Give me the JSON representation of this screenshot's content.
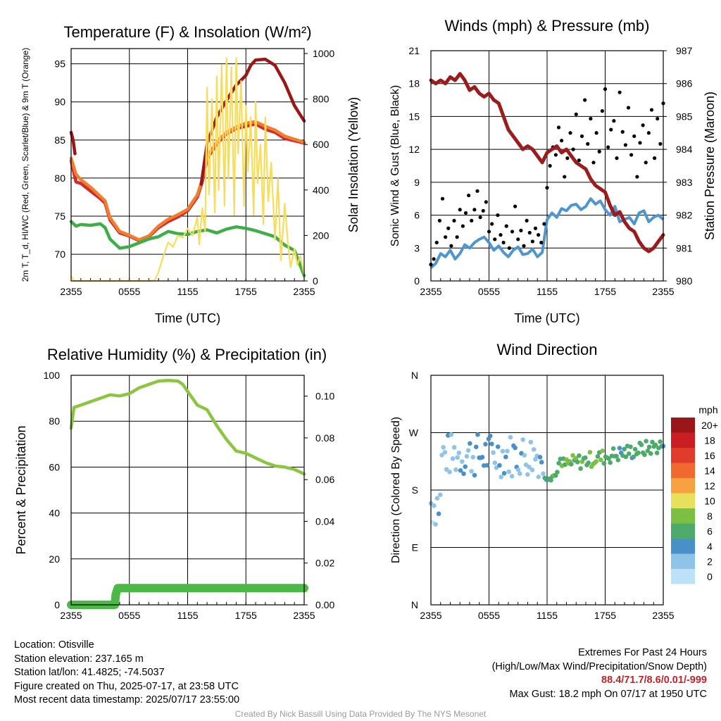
{
  "chart_data": [
    {
      "type": "line",
      "title": "Temperature (F) & Insolation (W/m²)",
      "xlabel": "Time (UTC)",
      "ylabel": "2m T, T_d, HI/WC (Red, Green, Scarlet/Blue) & 9m T (Orange)",
      "y2label": "Solar Insolation (Yellow)",
      "x_ticks": [
        "2355",
        "0555",
        "1155",
        "1755",
        "2355"
      ],
      "x_range_hours": [
        0,
        24
      ],
      "ylim": [
        66.5,
        97
      ],
      "y_ticks": [
        70,
        75,
        80,
        85,
        90,
        95
      ],
      "y2lim": [
        0,
        1000
      ],
      "y2_ticks": [
        0,
        200,
        400,
        600,
        800,
        1000
      ],
      "colors": {
        "temp": "#d32a2a",
        "dew": "#3fae49",
        "heat": "#9b1717",
        "t9": "#f07e30",
        "solar": "#f7dd5a"
      },
      "series": [
        {
          "key": "temp",
          "x": [
            0,
            0.5,
            1,
            2,
            3,
            3.5,
            4,
            5,
            6,
            7,
            8,
            9,
            10,
            11,
            12,
            13,
            13.5,
            14,
            14.5,
            15,
            16,
            17,
            18,
            19,
            20,
            21,
            22,
            23,
            24
          ],
          "y": [
            82.3,
            79.5,
            79.3,
            78.3,
            77.3,
            76.7,
            74.5,
            72.8,
            72.4,
            71.8,
            72.3,
            73.5,
            74.3,
            74.9,
            75.7,
            77.5,
            79.5,
            82.5,
            83.5,
            84.5,
            85.8,
            86.5,
            86.8,
            87.1,
            86.4,
            86,
            85.2,
            84.9,
            84.6
          ]
        },
        {
          "key": "t9",
          "x": [
            0,
            0.5,
            1,
            2,
            3,
            3.5,
            4,
            5,
            6,
            7,
            8,
            9,
            10,
            11,
            12,
            13,
            13.5,
            14,
            14.5,
            15,
            16,
            17,
            18,
            19,
            20,
            21,
            22,
            23,
            24
          ],
          "y": [
            82.6,
            80.5,
            79.8,
            78.8,
            77.6,
            77,
            74.8,
            73,
            72.5,
            71.9,
            72.4,
            73.7,
            74.6,
            75.2,
            75.9,
            77.8,
            79.8,
            82.8,
            83.8,
            84.8,
            86,
            86.7,
            87.2,
            87.4,
            86.8,
            86.3,
            85.5,
            85.1,
            84.7
          ]
        },
        {
          "key": "dew",
          "x": [
            0,
            0.5,
            1,
            2,
            3,
            3.5,
            4,
            5,
            6,
            7,
            8,
            9,
            10,
            11,
            12,
            13,
            14,
            15,
            16,
            17,
            18,
            19,
            20,
            21,
            22,
            23,
            24
          ],
          "y": [
            74.3,
            73.7,
            73.9,
            73.8,
            74,
            73.5,
            72,
            70.8,
            71,
            71.5,
            72,
            72.3,
            73,
            72.7,
            72.6,
            73,
            73.2,
            72.8,
            73.3,
            73.6,
            73.4,
            73.1,
            72.7,
            72.3,
            71.2,
            70.5,
            67.2
          ]
        },
        {
          "key": "heat",
          "x": [
            0,
            0.2,
            0.4
          ],
          "y": [
            86,
            85,
            83.2
          ]
        },
        {
          "key": "heat",
          "x": [
            13.4,
            14,
            15,
            16,
            17,
            18,
            18.5,
            19,
            20,
            21,
            22,
            23,
            24
          ],
          "y": [
            79.2,
            84.5,
            88,
            90.2,
            92.2,
            93.5,
            94.8,
            95.5,
            95.6,
            94.8,
            92.5,
            89.5,
            87.5
          ]
        },
        {
          "key": "solar",
          "axis": "y2",
          "x": [
            0,
            0.3,
            1,
            2,
            3,
            4,
            5,
            6,
            7,
            8,
            8.6,
            9,
            9.5,
            10,
            10.5,
            11,
            11.5,
            12,
            12.5,
            13,
            13.2,
            13.5,
            13.8,
            14,
            14.2,
            14.5,
            14.8,
            15,
            15.2,
            15.5,
            15.8,
            16,
            16.2,
            16.5,
            16.8,
            17,
            17.2,
            17.5,
            17.8,
            18,
            18.2,
            18.5,
            18.8,
            19,
            19.2,
            19.5,
            19.8,
            20,
            20.3,
            20.6,
            21,
            21.3,
            21.6,
            22,
            22.3,
            22.6,
            23,
            23.3,
            23.6,
            24
          ],
          "y": [
            20,
            0,
            0,
            0,
            0,
            0,
            0,
            0,
            0,
            0,
            2,
            40,
            110,
            170,
            150,
            200,
            190,
            230,
            200,
            280,
            160,
            320,
            220,
            850,
            380,
            800,
            300,
            900,
            400,
            950,
            330,
            980,
            450,
            940,
            290,
            980,
            560,
            880,
            330,
            770,
            480,
            720,
            290,
            790,
            430,
            600,
            250,
            720,
            350,
            520,
            180,
            450,
            90,
            340,
            180,
            60,
            140,
            70,
            110,
            30
          ]
        }
      ]
    },
    {
      "type": "scatter",
      "title": "Winds (mph) & Pressure (mb)",
      "xlabel": "Time (UTC)",
      "ylabel": "Sonic Wind & Gust (Blue, Black)",
      "y2label": "Station Pressure (Maroon)",
      "x_ticks": [
        "2355",
        "0555",
        "1155",
        "1755",
        "2355"
      ],
      "x_range_hours": [
        0,
        24
      ],
      "ylim": [
        0,
        21
      ],
      "y_ticks": [
        0,
        3,
        6,
        9,
        12,
        15,
        18,
        21
      ],
      "y2lim": [
        980,
        987
      ],
      "y2_ticks": [
        980,
        981,
        982,
        983,
        984,
        985,
        986,
        987
      ],
      "colors": {
        "wind": "#4f96d0",
        "gust": "#000000",
        "pressure": "#9b1c1c"
      },
      "wind": {
        "x": [
          0,
          0.5,
          1,
          1.5,
          2,
          2.5,
          3,
          3.5,
          4,
          4.5,
          5,
          5.5,
          6,
          6.5,
          7,
          7.5,
          8,
          8.5,
          9,
          9.5,
          10,
          10.5,
          11,
          11.5,
          12,
          12.5,
          13,
          13.5,
          14,
          14.5,
          15,
          15.5,
          16,
          16.5,
          17,
          17.5,
          18,
          18.5,
          19,
          19.5,
          20,
          20.5,
          21,
          21.5,
          22,
          22.5,
          23,
          23.5,
          24
        ],
        "y": [
          1.2,
          1.6,
          2.5,
          2.2,
          2.8,
          2.0,
          2.5,
          3.3,
          3.0,
          3.5,
          3.8,
          4.0,
          3.5,
          2.8,
          3.2,
          2.6,
          2.2,
          2.8,
          3.1,
          2.4,
          2.5,
          2.9,
          2.2,
          2.6,
          5.6,
          6.2,
          5.8,
          6.6,
          6.4,
          6.9,
          7.0,
          6.5,
          6.8,
          7.5,
          7.0,
          7.3,
          6.5,
          6.0,
          6.8,
          5.4,
          5.6,
          5.8,
          5.2,
          6.2,
          6.4,
          5.4,
          5.8,
          6.0,
          5.6
        ]
      },
      "gust": {
        "x": [
          0,
          0.3,
          0.6,
          0.9,
          1.2,
          1.5,
          1.8,
          2.1,
          2.4,
          2.7,
          3.0,
          3.3,
          3.6,
          3.9,
          4.2,
          4.5,
          4.8,
          5.1,
          5.4,
          5.7,
          6.0,
          6.3,
          6.6,
          6.9,
          7.2,
          7.5,
          7.8,
          8.1,
          8.4,
          8.7,
          9.0,
          9.3,
          9.6,
          9.9,
          10.2,
          10.5,
          10.8,
          11.1,
          11.4,
          11.7,
          12.0,
          12.3,
          12.6,
          12.9,
          13.2,
          13.5,
          13.8,
          14.1,
          14.4,
          14.7,
          15.0,
          15.3,
          15.6,
          15.9,
          16.2,
          16.5,
          16.8,
          17.1,
          17.4,
          17.7,
          18.0,
          18.3,
          18.6,
          18.9,
          19.2,
          19.5,
          19.8,
          20.1,
          20.4,
          20.7,
          21.0,
          21.3,
          21.6,
          21.9,
          22.2,
          22.5,
          22.8,
          23.1,
          23.4,
          23.7,
          24.0
        ],
        "y": [
          1.5,
          2.0,
          3.5,
          5.5,
          7.5,
          4.0,
          4.8,
          3.2,
          5.5,
          4.0,
          6.5,
          5.0,
          6.2,
          7.8,
          5.5,
          6.5,
          8.2,
          5.8,
          6.4,
          7.2,
          4.5,
          5.2,
          3.8,
          6.0,
          4.2,
          3.5,
          5.0,
          3.0,
          4.5,
          6.8,
          3.8,
          4.6,
          3.2,
          5.5,
          4.4,
          3.6,
          4.8,
          4.2,
          3.5,
          5.2,
          8.5,
          10.5,
          12.2,
          11.5,
          14.0,
          12.8,
          9.5,
          11.2,
          13.5,
          12.0,
          15.2,
          11.0,
          13.2,
          16.5,
          12.5,
          14.8,
          10.8,
          13.5,
          11.8,
          15.5,
          17.5,
          12.2,
          13.8,
          14.6,
          11.2,
          17.2,
          13.6,
          12.4,
          15.8,
          11.5,
          13.2,
          9.5,
          12.6,
          14.2,
          10.8,
          13.5,
          15.6,
          11.2,
          14.8,
          12.5,
          16.2
        ]
      },
      "pressure": {
        "x": [
          0,
          0.5,
          1,
          1.5,
          2,
          2.5,
          3,
          3.5,
          4,
          4.5,
          5,
          5.5,
          6,
          6.5,
          7,
          7.5,
          8,
          8.5,
          9,
          9.5,
          10,
          10.5,
          11,
          11.5,
          12,
          12.5,
          13,
          13.5,
          14,
          14.5,
          15,
          15.5,
          16,
          16.5,
          17,
          17.5,
          18,
          18.5,
          19,
          19.5,
          20,
          20.5,
          21,
          21.5,
          22,
          22.5,
          23,
          23.5,
          24
        ],
        "y": [
          986.1,
          986.0,
          986.1,
          986.0,
          986.2,
          986.1,
          986.3,
          986.1,
          985.8,
          985.9,
          985.7,
          985.6,
          985.7,
          985.5,
          985.4,
          985.0,
          984.6,
          984.4,
          984.2,
          984.0,
          984.1,
          984.0,
          983.8,
          983.6,
          983.9,
          984.0,
          984.1,
          983.9,
          984.0,
          983.8,
          983.6,
          983.5,
          983.4,
          983.1,
          982.9,
          982.8,
          982.7,
          982.3,
          982.0,
          982.1,
          981.8,
          981.6,
          981.5,
          981.2,
          981.0,
          980.9,
          981.0,
          981.2,
          981.4
        ]
      }
    },
    {
      "type": "line",
      "title": "Relative Humidity (%) & Precipitation (in)",
      "xlabel": "",
      "ylabel": "Percent & Precipitation",
      "x_ticks": [
        "2355",
        "0555",
        "1155",
        "1755",
        "2355"
      ],
      "x_range_hours": [
        0,
        24
      ],
      "ylim": [
        0,
        100
      ],
      "y_ticks": [
        0,
        20,
        40,
        60,
        80,
        100
      ],
      "y2lim": [
        0,
        0.11
      ],
      "y2_ticks": [
        "0.00",
        "0.02",
        "0.04",
        "0.06",
        "0.08",
        "0.10"
      ],
      "colors": {
        "rh": "#8cc63f",
        "precip": "#4cb848"
      },
      "series": [
        {
          "key": "rh",
          "x": [
            0,
            0.3,
            1,
            2,
            3,
            4,
            5,
            6,
            7,
            8,
            9,
            10,
            11,
            11.5,
            12,
            13,
            14,
            15,
            16,
            17,
            18,
            19,
            20,
            21,
            22,
            23,
            24
          ],
          "y": [
            77,
            86,
            87,
            88.5,
            90,
            91.5,
            91,
            92,
            94.5,
            96,
            97.5,
            97.8,
            97.5,
            96,
            93,
            87,
            85,
            78,
            72,
            67,
            66,
            64,
            62,
            60.5,
            60,
            59,
            57
          ]
        },
        {
          "key": "precip",
          "axis": "y2",
          "x": [
            0,
            4.5,
            4.6,
            4.8,
            24
          ],
          "y": [
            0.0,
            0.0,
            0.005,
            0.008,
            0.008
          ]
        }
      ]
    },
    {
      "type": "scatter",
      "title": "Wind Direction",
      "ylabel": "Direction (Colored By Speed)",
      "x_ticks": [
        "2355",
        "0555",
        "1155",
        "1755",
        "2355"
      ],
      "x_range_hours": [
        0,
        24
      ],
      "y_ticks": [
        "N",
        "E",
        "S",
        "W",
        "N"
      ],
      "ylim_degrees": [
        0,
        360
      ],
      "legend": {
        "title": "mph",
        "labels": [
          "0",
          "2",
          "4",
          "6",
          "8",
          "10",
          "12",
          "14",
          "16",
          "18",
          "20+"
        ],
        "colors": [
          "#bde2f7",
          "#8ec4e8",
          "#4a90c8",
          "#4daa6a",
          "#7bc043",
          "#e8e05a",
          "#f7a240",
          "#f06a30",
          "#e03c2c",
          "#c81e24",
          "#9b1717"
        ]
      }
    }
  ],
  "info": {
    "location": "Location: Otisville",
    "elevation": "Station elevation: 237.165 m",
    "latlon": "Station lat/lon: 41.4825; -74.5037",
    "created": "Figure created on Thu, 2025-07-17, at 23:58 UTC",
    "recent": "Most recent data timestamp: 2025/07/17 23:55:00"
  },
  "extremes": {
    "title": "Extremes For Past 24 Hours",
    "subtitle": "(High/Low/Max Wind/Precipitation/Snow Depth)",
    "values": "88.4/71.7/8.6/0.01/-999",
    "gust": "Max Gust: 18.2 mph On 07/17 at 1950 UTC"
  },
  "credit": "Created By Nick Bassill Using Data Provided By The NYS Mesonet"
}
